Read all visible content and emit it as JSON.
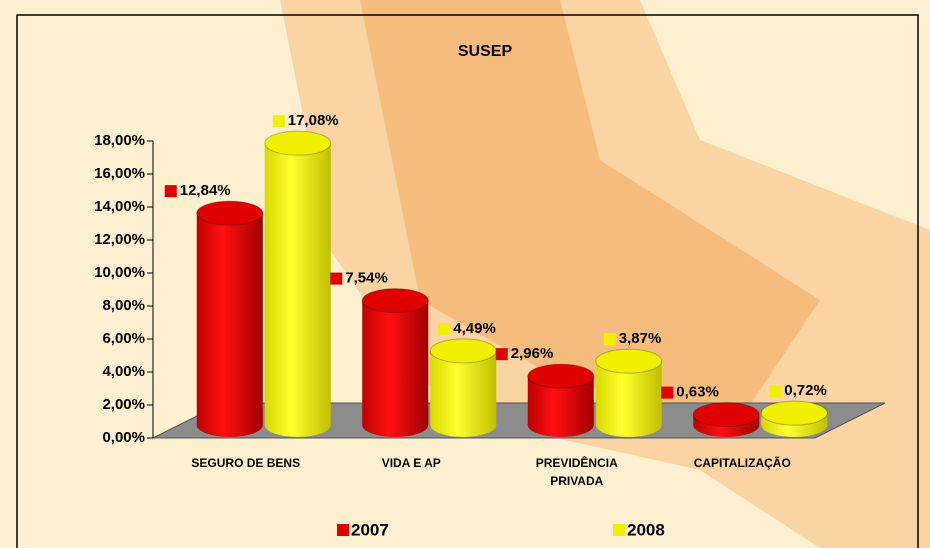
{
  "chart_data": {
    "type": "bar3d",
    "title": "SUSEP",
    "categories": [
      "SEGURO DE BENS",
      "VIDA E AP",
      "PREVIDÊNCIA PRIVADA",
      "CAPITALIZAÇÃO"
    ],
    "series": [
      {
        "name": "2007",
        "color": "#e00000",
        "values": [
          12.84,
          7.54,
          2.96,
          0.63
        ],
        "value_labels": [
          "12,84%",
          "7,54%",
          "2,96%",
          "0,63%"
        ]
      },
      {
        "name": "2008",
        "color": "#f0f000",
        "values": [
          17.08,
          4.49,
          3.87,
          0.72
        ],
        "value_labels": [
          "17,08%",
          "4,49%",
          "3,87%",
          "0,72%"
        ]
      }
    ],
    "ylim": [
      0,
      18
    ],
    "yticks": [
      {
        "value": 0,
        "label": "0,00%"
      },
      {
        "value": 2,
        "label": "2,00%"
      },
      {
        "value": 4,
        "label": "4,00%"
      },
      {
        "value": 6,
        "label": "6,00%"
      },
      {
        "value": 8,
        "label": "8,00%"
      },
      {
        "value": 10,
        "label": "10,00%"
      },
      {
        "value": 12,
        "label": "12,00%"
      },
      {
        "value": 14,
        "label": "14,00%"
      },
      {
        "value": 16,
        "label": "16,00%"
      },
      {
        "value": 18,
        "label": "18,00%"
      }
    ]
  }
}
